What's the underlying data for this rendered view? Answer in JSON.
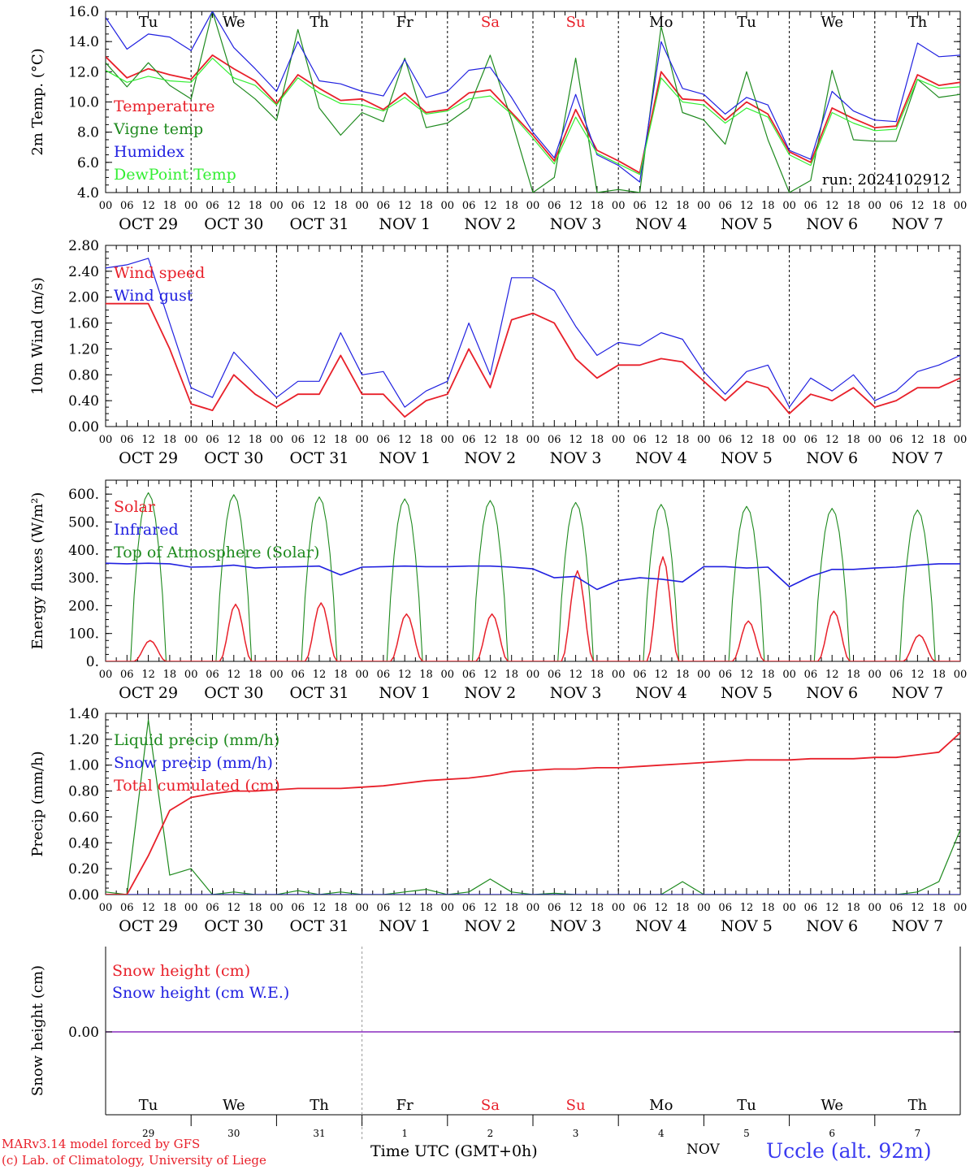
{
  "x_axis": {
    "hour_ticks": [
      "00",
      "06",
      "12",
      "18"
    ],
    "last_tick": "00",
    "date_labels": [
      "OCT 29",
      "OCT 30",
      "OCT 31",
      "NOV  1",
      "NOV  2",
      "NOV  3",
      "NOV  4",
      "NOV  5",
      "NOV  6",
      "NOV  7"
    ],
    "weekdays": [
      "Tu",
      "We",
      "Th",
      "Fr",
      "Sa",
      "Su",
      "Mo",
      "Tu",
      "We",
      "Th"
    ],
    "weekday_colors": [
      "#000000",
      "#000000",
      "#000000",
      "#000000",
      "#e8202a",
      "#e8202a",
      "#000000",
      "#000000",
      "#000000",
      "#000000"
    ],
    "day_numbers": [
      "29",
      "30",
      "31",
      "1",
      "2",
      "3",
      "4",
      "5",
      "6",
      "7"
    ],
    "month_label": "NOV",
    "axis_title": "Time UTC (GMT+0h)"
  },
  "footer": {
    "credit_line1": "MARv3.14 model forced by GFS",
    "credit_line2": "(c) Lab. of Climatology, University of Liege",
    "station": "Uccle (alt. 92m)"
  },
  "colors": {
    "red": "#e8202a",
    "green": "#1e8a1e",
    "blue": "#2020e0",
    "lightgreen": "#33ee33",
    "purple": "#8a2bbf"
  },
  "chart_data": [
    {
      "type": "line",
      "id": "temperature",
      "ylabel": "2m Temp. (°C)",
      "ylim": [
        4.0,
        16.0
      ],
      "yticks": [
        "4.0",
        "6.0",
        "8.0",
        "10.0",
        "12.0",
        "14.0",
        "16.0"
      ],
      "annotation": "run: 2024102912",
      "series": [
        {
          "name": "Temperature",
          "color": "#e8202a",
          "values": [
            13.0,
            11.6,
            12.2,
            11.8,
            11.5,
            13.1,
            12.2,
            11.4,
            9.9,
            11.8,
            10.9,
            10.1,
            10.2,
            9.5,
            10.6,
            9.3,
            9.5,
            10.6,
            10.8,
            9.3,
            7.8,
            6.1,
            9.5,
            6.8,
            6.1,
            5.3,
            12.0,
            10.2,
            10.1,
            8.8,
            10.0,
            9.2,
            6.7,
            6.0,
            9.6,
            8.9,
            8.3,
            8.4,
            11.8,
            11.1,
            11.3
          ]
        },
        {
          "name": "Vigne temp",
          "color": "#1e8a1e",
          "values": [
            12.6,
            11.0,
            12.6,
            11.1,
            10.2,
            16.0,
            11.3,
            10.2,
            8.8,
            14.8,
            9.6,
            7.8,
            9.3,
            8.7,
            12.9,
            8.3,
            8.6,
            9.6,
            13.1,
            8.8,
            3.5,
            5.0,
            12.9,
            3.8,
            4.2,
            3.8,
            15.0,
            9.3,
            8.8,
            7.2,
            12.0,
            7.5,
            4.0,
            4.8,
            12.1,
            7.5,
            7.4,
            7.4,
            11.5,
            10.3,
            10.5
          ]
        },
        {
          "name": "Humidex",
          "color": "#2020e0",
          "values": [
            15.6,
            13.5,
            14.5,
            14.3,
            13.4,
            16.0,
            13.6,
            12.2,
            10.7,
            14.0,
            11.4,
            11.2,
            10.7,
            10.4,
            12.8,
            10.3,
            10.7,
            12.1,
            12.3,
            10.3,
            8.0,
            6.3,
            10.5,
            6.5,
            5.8,
            4.7,
            14.0,
            10.9,
            10.5,
            9.2,
            10.3,
            9.8,
            6.8,
            6.2,
            10.7,
            9.4,
            8.8,
            8.7,
            13.9,
            13.0,
            13.1
          ]
        },
        {
          "name": "DewPoint Temp",
          "color": "#33ee33",
          "values": [
            12.1,
            11.3,
            11.7,
            11.4,
            11.3,
            12.9,
            11.6,
            11.1,
            9.8,
            11.6,
            10.6,
            9.9,
            9.8,
            9.4,
            10.3,
            9.2,
            9.4,
            10.2,
            10.4,
            9.2,
            7.6,
            5.9,
            9.0,
            6.6,
            5.9,
            5.2,
            11.6,
            10.0,
            9.8,
            8.6,
            9.6,
            9.0,
            6.5,
            5.8,
            9.3,
            8.6,
            8.1,
            8.2,
            11.5,
            10.9,
            11.0
          ]
        }
      ]
    },
    {
      "type": "line",
      "id": "wind",
      "ylabel": "10m Wind (m/s)",
      "ylim": [
        0.0,
        2.8
      ],
      "yticks": [
        "0.00",
        "0.40",
        "0.80",
        "1.20",
        "1.60",
        "2.00",
        "2.40",
        "2.80"
      ],
      "series": [
        {
          "name": "Wind speed",
          "color": "#e8202a",
          "values": [
            1.9,
            1.9,
            1.9,
            1.2,
            0.35,
            0.25,
            0.8,
            0.5,
            0.3,
            0.5,
            0.5,
            1.1,
            0.5,
            0.5,
            0.15,
            0.4,
            0.5,
            1.2,
            0.6,
            1.65,
            1.75,
            1.6,
            1.05,
            0.75,
            0.95,
            0.95,
            1.05,
            1.0,
            0.7,
            0.4,
            0.7,
            0.6,
            0.2,
            0.5,
            0.4,
            0.6,
            0.3,
            0.4,
            0.6,
            0.6,
            0.75
          ]
        },
        {
          "name": "Wind gust",
          "color": "#2020e0",
          "values": [
            2.45,
            2.5,
            2.6,
            1.6,
            0.6,
            0.45,
            1.15,
            0.8,
            0.45,
            0.7,
            0.7,
            1.45,
            0.8,
            0.85,
            0.3,
            0.55,
            0.7,
            1.6,
            0.8,
            2.3,
            2.3,
            2.1,
            1.55,
            1.1,
            1.3,
            1.25,
            1.45,
            1.35,
            0.85,
            0.5,
            0.85,
            0.95,
            0.3,
            0.75,
            0.55,
            0.8,
            0.4,
            0.55,
            0.85,
            0.95,
            1.1
          ]
        }
      ]
    },
    {
      "type": "line",
      "id": "energy",
      "ylabel": "Energy fluxes (W/m²)",
      "ylim": [
        0,
        650
      ],
      "yticks": [
        "0.",
        "100.",
        "200.",
        "300.",
        "400.",
        "500.",
        "600."
      ],
      "series": [
        {
          "name": "Solar",
          "color": "#e8202a",
          "daily_peaks": [
            75,
            205,
            210,
            170,
            170,
            325,
            375,
            145,
            180,
            95
          ]
        },
        {
          "name": "Infrared",
          "color": "#2020e0",
          "values": [
            352,
            350,
            352,
            350,
            338,
            340,
            345,
            335,
            338,
            340,
            342,
            310,
            338,
            340,
            342,
            340,
            340,
            342,
            342,
            338,
            332,
            300,
            305,
            258,
            290,
            300,
            295,
            285,
            340,
            340,
            335,
            338,
            268,
            305,
            330,
            330,
            335,
            338,
            345,
            350,
            350
          ]
        },
        {
          "name": "Top of Atmosphere (Solar)",
          "color": "#1e8a1e",
          "daily_peaks": [
            605,
            598,
            590,
            583,
            577,
            570,
            563,
            556,
            549,
            543
          ]
        }
      ]
    },
    {
      "type": "line",
      "id": "precip",
      "ylabel": "Precip (mm/h)",
      "ylim": [
        0.0,
        1.4
      ],
      "yticks": [
        "0.00",
        "0.20",
        "0.40",
        "0.60",
        "0.80",
        "1.00",
        "1.20",
        "1.40"
      ],
      "series": [
        {
          "name": "Liquid precip (mm/h)",
          "color": "#1e8a1e",
          "values": [
            0.02,
            0.0,
            1.35,
            0.15,
            0.2,
            0.0,
            0.02,
            0.0,
            0.0,
            0.03,
            0.0,
            0.02,
            0.0,
            0.0,
            0.02,
            0.04,
            0.0,
            0.02,
            0.12,
            0.02,
            0.0,
            0.01,
            0.0,
            0.0,
            0.0,
            0.0,
            0.0,
            0.1,
            0.0,
            0.0,
            0.0,
            0.0,
            0.0,
            0.0,
            0.0,
            0.0,
            0.0,
            0.0,
            0.02,
            0.1,
            0.5
          ]
        },
        {
          "name": "Snow precip (mm/h)",
          "color": "#2020e0",
          "values": [
            0,
            0,
            0,
            0,
            0,
            0,
            0,
            0,
            0,
            0,
            0,
            0,
            0,
            0,
            0,
            0,
            0,
            0,
            0,
            0,
            0,
            0,
            0,
            0,
            0,
            0,
            0,
            0,
            0,
            0,
            0,
            0,
            0,
            0,
            0,
            0,
            0,
            0,
            0,
            0,
            0
          ]
        },
        {
          "name": "Total cumulated (cm)",
          "color": "#e8202a",
          "values": [
            0.0,
            0.0,
            0.3,
            0.65,
            0.75,
            0.78,
            0.8,
            0.8,
            0.81,
            0.82,
            0.82,
            0.82,
            0.83,
            0.84,
            0.86,
            0.88,
            0.89,
            0.9,
            0.92,
            0.95,
            0.96,
            0.97,
            0.97,
            0.98,
            0.98,
            0.99,
            1.0,
            1.01,
            1.02,
            1.03,
            1.04,
            1.04,
            1.04,
            1.05,
            1.05,
            1.05,
            1.06,
            1.06,
            1.08,
            1.1,
            1.25
          ]
        }
      ]
    },
    {
      "type": "line",
      "id": "snow",
      "ylabel": "Snow height (cm)",
      "yticks": [
        "0.00"
      ],
      "series": [
        {
          "name": "Snow height (cm)",
          "color": "#e8202a",
          "values": [
            0,
            0,
            0,
            0,
            0,
            0,
            0,
            0,
            0,
            0,
            0,
            0,
            0,
            0,
            0,
            0,
            0,
            0,
            0,
            0,
            0,
            0,
            0,
            0,
            0,
            0,
            0,
            0,
            0,
            0,
            0,
            0,
            0,
            0,
            0,
            0,
            0,
            0,
            0,
            0,
            0
          ]
        },
        {
          "name": "Snow height (cm W.E.)",
          "color": "#2020e0",
          "values": [
            0,
            0,
            0,
            0,
            0,
            0,
            0,
            0,
            0,
            0,
            0,
            0,
            0,
            0,
            0,
            0,
            0,
            0,
            0,
            0,
            0,
            0,
            0,
            0,
            0,
            0,
            0,
            0,
            0,
            0,
            0,
            0,
            0,
            0,
            0,
            0,
            0,
            0,
            0,
            0,
            0
          ]
        }
      ]
    }
  ]
}
